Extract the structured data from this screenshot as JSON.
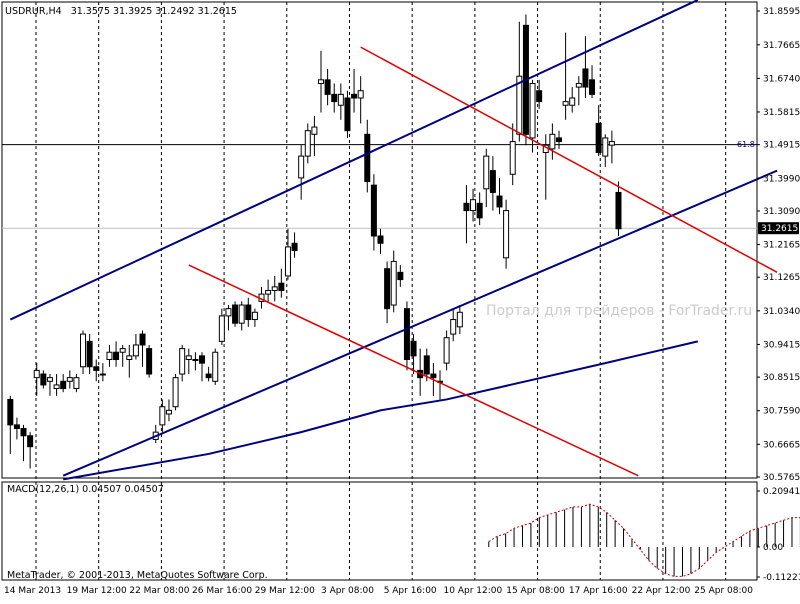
{
  "header": {
    "symbol": "USDRUR,H4",
    "ohlc": "31.3575 31.3925 31.2492 31.2615"
  },
  "watermark": "Портал для трейдеров - ForTrader.ru",
  "copyright": "MetaTrader, © 2001-2013, MetaQuotes Software Corp.",
  "macd_label": "MACD(12,26,1) 0.04507 0.04507",
  "fib_label": "61.8",
  "current_price_label": "31.2615",
  "colors": {
    "background": "#ffffff",
    "bull": "#ffffff",
    "bear": "#000000",
    "channel": "#000080",
    "fib_line": "#e00000",
    "ma": "#00007f",
    "macd_bar": "#000000",
    "signal": "#c00000"
  },
  "chart_data": [
    {
      "type": "candlestick",
      "title": "USDRUR,H4",
      "ylim": [
        30.5765,
        31.8595
      ],
      "y_ticks": [
        "31.8595",
        "31.7665",
        "31.6740",
        "31.5815",
        "31.4915",
        "31.3990",
        "31.3090",
        "31.2165",
        "31.1265",
        "31.0340",
        "30.9415",
        "30.8515",
        "30.7590",
        "30.6665",
        "30.5765"
      ],
      "x_ticks": [
        "14 Mar 2013",
        "19 Mar 12:00",
        "22 Mar 08:00",
        "26 Mar 16:00",
        "29 Mar 12:00",
        "3 Apr 08:00",
        "5 Apr 16:00",
        "10 Apr 12:00",
        "15 Apr 08:00",
        "17 Apr 16:00",
        "22 Apr 12:00",
        "25 Apr 08:00"
      ],
      "candles": [
        [
          30.79,
          30.8,
          30.64,
          30.72
        ],
        [
          30.72,
          30.74,
          30.68,
          30.71
        ],
        [
          30.71,
          30.72,
          30.62,
          30.69
        ],
        [
          30.69,
          30.7,
          30.6,
          30.66
        ],
        [
          30.85,
          30.89,
          30.8,
          30.87
        ],
        [
          30.86,
          30.87,
          30.82,
          30.83
        ],
        [
          30.84,
          30.86,
          30.8,
          30.85
        ],
        [
          30.82,
          30.86,
          30.8,
          30.83
        ],
        [
          30.84,
          30.86,
          30.81,
          30.82
        ],
        [
          30.84,
          30.87,
          30.82,
          30.85
        ],
        [
          30.82,
          30.86,
          30.81,
          30.85
        ],
        [
          30.88,
          30.98,
          30.86,
          30.97
        ],
        [
          30.95,
          30.97,
          30.86,
          30.88
        ],
        [
          30.88,
          30.9,
          30.84,
          30.87
        ],
        [
          30.86,
          30.89,
          30.84,
          30.86
        ],
        [
          30.9,
          30.94,
          30.88,
          30.92
        ],
        [
          30.92,
          30.95,
          30.88,
          30.9
        ],
        [
          30.92,
          30.94,
          30.88,
          30.93
        ],
        [
          30.9,
          30.94,
          30.85,
          30.91
        ],
        [
          30.91,
          30.97,
          30.9,
          30.94
        ],
        [
          30.97,
          30.98,
          30.88,
          30.94
        ],
        [
          30.93,
          30.94,
          30.85,
          30.86
        ],
        [
          30.68,
          30.72,
          30.67,
          30.7
        ],
        [
          30.72,
          30.79,
          30.7,
          30.77
        ],
        [
          30.75,
          30.79,
          30.73,
          30.76
        ],
        [
          30.77,
          30.86,
          30.76,
          30.85
        ],
        [
          30.86,
          30.94,
          30.84,
          30.93
        ],
        [
          30.9,
          30.93,
          30.86,
          30.91
        ],
        [
          30.9,
          30.92,
          30.87,
          30.9
        ],
        [
          30.91,
          30.92,
          30.84,
          30.89
        ],
        [
          30.86,
          30.88,
          30.84,
          30.85
        ],
        [
          30.84,
          30.93,
          30.83,
          30.92
        ],
        [
          30.95,
          31.04,
          30.94,
          31.02
        ],
        [
          31.02,
          31.05,
          30.98,
          31.04
        ],
        [
          31.05,
          31.06,
          30.99,
          31.0
        ],
        [
          31.0,
          31.06,
          30.98,
          31.05
        ],
        [
          31.05,
          31.07,
          30.99,
          31.01
        ],
        [
          31.01,
          31.04,
          30.99,
          31.03
        ],
        [
          31.06,
          31.1,
          31.04,
          31.08
        ],
        [
          31.08,
          31.12,
          31.06,
          31.09
        ],
        [
          31.09,
          31.13,
          31.06,
          31.1
        ],
        [
          31.11,
          31.15,
          31.07,
          31.09
        ],
        [
          31.13,
          31.26,
          31.12,
          31.21
        ],
        [
          31.22,
          31.25,
          31.18,
          31.2
        ],
        [
          31.4,
          31.49,
          31.34,
          31.46
        ],
        [
          31.46,
          31.55,
          31.44,
          31.53
        ],
        [
          31.52,
          31.57,
          31.46,
          31.54
        ],
        [
          31.66,
          31.75,
          31.58,
          31.67
        ],
        [
          31.67,
          31.7,
          31.6,
          31.63
        ],
        [
          31.63,
          31.66,
          31.58,
          31.61
        ],
        [
          31.6,
          31.66,
          31.56,
          31.63
        ],
        [
          31.62,
          31.64,
          31.51,
          31.53
        ],
        [
          31.63,
          31.7,
          31.58,
          31.62
        ],
        [
          31.62,
          31.68,
          31.55,
          31.64
        ],
        [
          31.52,
          31.56,
          31.36,
          31.39
        ],
        [
          31.38,
          31.41,
          31.2,
          31.24
        ],
        [
          31.24,
          31.26,
          31.19,
          31.22
        ],
        [
          31.15,
          31.17,
          31.0,
          31.04
        ],
        [
          31.05,
          31.2,
          31.03,
          31.17
        ],
        [
          31.14,
          31.16,
          31.1,
          31.12
        ],
        [
          31.04,
          31.06,
          30.87,
          30.9
        ],
        [
          30.95,
          30.97,
          30.86,
          30.91
        ],
        [
          30.87,
          30.93,
          30.8,
          30.85
        ],
        [
          30.91,
          30.93,
          30.84,
          30.86
        ],
        [
          30.86,
          30.89,
          30.8,
          30.85
        ],
        [
          30.84,
          30.87,
          30.79,
          30.84
        ],
        [
          30.89,
          30.98,
          30.87,
          30.96
        ],
        [
          30.97,
          31.04,
          30.95,
          31.01
        ],
        [
          30.99,
          31.05,
          30.97,
          31.03
        ],
        [
          31.33,
          31.38,
          31.22,
          31.31
        ],
        [
          31.31,
          31.37,
          31.28,
          31.34
        ],
        [
          31.33,
          31.36,
          31.27,
          31.29
        ],
        [
          31.37,
          31.48,
          31.32,
          31.46
        ],
        [
          31.42,
          31.46,
          31.31,
          31.36
        ],
        [
          31.35,
          31.4,
          31.3,
          31.32
        ],
        [
          31.18,
          31.34,
          31.15,
          31.31
        ],
        [
          31.41,
          31.55,
          31.38,
          31.5
        ],
        [
          31.52,
          31.83,
          31.5,
          31.68
        ],
        [
          31.82,
          31.85,
          31.49,
          31.52
        ],
        [
          31.51,
          31.67,
          31.47,
          31.66
        ],
        [
          31.64,
          31.67,
          31.59,
          31.61
        ],
        [
          31.47,
          31.52,
          31.34,
          31.49
        ],
        [
          31.48,
          31.55,
          31.45,
          31.52
        ],
        [
          31.51,
          31.53,
          31.48,
          31.5
        ],
        [
          31.6,
          31.8,
          31.56,
          31.61
        ],
        [
          31.6,
          31.65,
          31.58,
          31.62
        ],
        [
          31.65,
          31.68,
          31.6,
          31.66
        ],
        [
          31.7,
          31.79,
          31.62,
          31.65
        ],
        [
          31.67,
          31.71,
          31.62,
          31.63
        ],
        [
          31.55,
          31.6,
          31.46,
          31.47
        ],
        [
          31.46,
          31.52,
          31.43,
          31.51
        ],
        [
          31.49,
          31.53,
          31.44,
          31.5
        ],
        [
          31.36,
          31.39,
          31.24,
          31.26
        ]
      ],
      "channel_lines": [
        {
          "name": "upper",
          "from": [
            0,
            31.01
          ],
          "to": [
            104,
            31.89
          ]
        },
        {
          "name": "lower",
          "from": [
            8,
            30.58
          ],
          "to": [
            116,
            31.42
          ]
        },
        {
          "name": "red-upper",
          "from": [
            53,
            31.76
          ],
          "to": [
            116,
            31.14
          ]
        },
        {
          "name": "red-lower",
          "from": [
            27,
            31.16
          ],
          "to": [
            95,
            30.58
          ]
        }
      ],
      "moving_average": [
        [
          8,
          30.57
        ],
        [
          30,
          30.64
        ],
        [
          44,
          30.7
        ],
        [
          56,
          30.76
        ],
        [
          66,
          30.79
        ],
        [
          78,
          30.84
        ],
        [
          90,
          30.89
        ],
        [
          104,
          30.95
        ]
      ],
      "horizontal_levels": [
        31.4915,
        31.2615
      ]
    },
    {
      "type": "macd",
      "title": "MACD(12,26,1)",
      "y_ticks": [
        "0.20941",
        "0.00",
        "-0.11221"
      ],
      "ylim": [
        -0.11221,
        0.20941
      ],
      "values": [
        0.02,
        0.04,
        0.05,
        0.07,
        0.08,
        0.09,
        0.11,
        0.12,
        0.13,
        0.14,
        0.15,
        0.15,
        0.16,
        0.15,
        0.13,
        0.1,
        0.07,
        0.03,
        -0.01,
        -0.05,
        -0.08,
        -0.1,
        -0.11,
        -0.11,
        -0.1,
        -0.08,
        -0.05,
        -0.02,
        0.0,
        0.02,
        0.04,
        0.06,
        0.07,
        0.08,
        0.09,
        0.1,
        0.11,
        0.11,
        0.1,
        0.1,
        0.09,
        0.1,
        0.11,
        0.11,
        0.1,
        0.1,
        0.09,
        0.08,
        0.06,
        0.04,
        0.03
      ]
    }
  ]
}
